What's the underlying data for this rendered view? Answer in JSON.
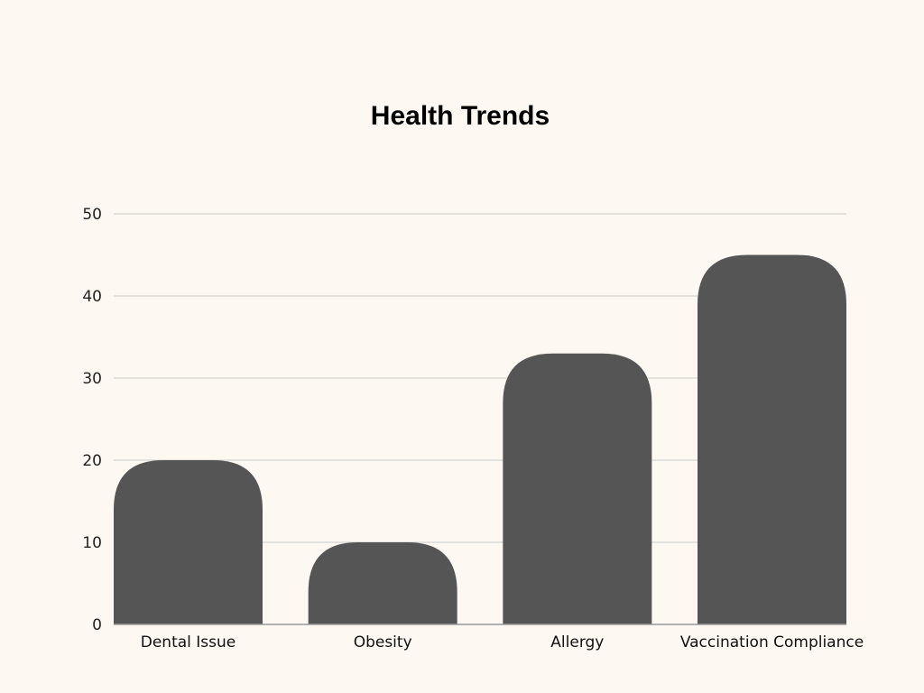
{
  "chart_data": {
    "type": "bar",
    "title": "Health Trends",
    "xlabel": "",
    "ylabel": "",
    "categories": [
      "Dental Issue",
      "Obesity",
      "Allergy",
      "Vaccination Compliance"
    ],
    "values": [
      20,
      10,
      33,
      45
    ],
    "ylim": [
      0,
      50
    ],
    "yticks": [
      "0",
      "10",
      "20",
      "30",
      "40",
      "50"
    ],
    "grid": true,
    "legend": "none",
    "bar_color": "#555555",
    "gridline_color": "#cccccc",
    "background_color": "#fdf8f1"
  }
}
